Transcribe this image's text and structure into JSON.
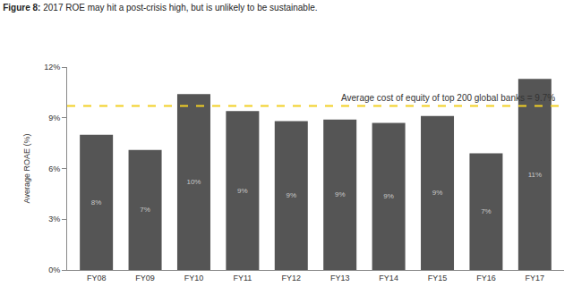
{
  "chart_data": {
    "type": "bar",
    "title": "Figure 8: 2017 ROE may hit a post-crisis high, but is unlikely to be sustainable.",
    "y_label": "Average ROAE (%)",
    "categories": [
      "FY08",
      "FY09",
      "FY10",
      "FY11",
      "FY12",
      "FY13",
      "FY14",
      "FY15",
      "FY16",
      "FY17"
    ],
    "values": [
      8.0,
      7.1,
      10.4,
      9.4,
      8.8,
      8.9,
      8.7,
      9.1,
      6.9,
      11.3
    ],
    "value_labels": [
      "8%",
      "7%",
      "10%",
      "9%",
      "9%",
      "9%",
      "9%",
      "9%",
      "7%",
      "11%"
    ],
    "color": "#555555",
    "ylim": [
      0,
      12
    ],
    "yticks": [
      {
        "value": 0,
        "label": "0%"
      },
      {
        "value": 3,
        "label": "3%"
      },
      {
        "value": 6,
        "label": "6%"
      },
      {
        "value": 9,
        "label": "9%"
      },
      {
        "value": 12,
        "label": "12%"
      }
    ],
    "grid": false,
    "data_labels": true,
    "annotations": [
      {
        "text": "Average cost of equity of top 200 global banks = 9.7%",
        "y": 9.7,
        "color": "#f2d024",
        "line_style": "dashed"
      }
    ]
  }
}
